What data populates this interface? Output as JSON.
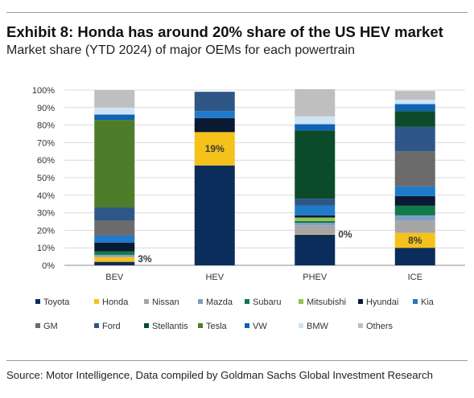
{
  "title": "Exhibit 8: Honda has around 20% share of the US HEV market",
  "subtitle": "Market share (YTD 2024) of major OEMs for each powertrain",
  "source": "Source: Motor Intelligence, Data compiled by Goldman Sachs Global Investment Research",
  "chart_data": {
    "type": "bar",
    "stacked": true,
    "categories": [
      "BEV",
      "HEV",
      "PHEV",
      "ICE"
    ],
    "ylim": [
      0,
      100
    ],
    "yticks": [
      "0%",
      "10%",
      "20%",
      "30%",
      "40%",
      "50%",
      "60%",
      "70%",
      "80%",
      "90%",
      "100%"
    ],
    "grid": true,
    "legend_position": "bottom",
    "series": [
      {
        "name": "Toyota",
        "color": "#0b2d5b",
        "values": [
          2,
          57,
          17.5,
          10
        ]
      },
      {
        "name": "Honda",
        "color": "#f5c21b",
        "values": [
          2.5,
          19,
          0.3,
          8.5
        ]
      },
      {
        "name": "Nissan",
        "color": "#a6a6a6",
        "values": [
          1,
          0,
          5,
          7
        ]
      },
      {
        "name": "Mazda",
        "color": "#7f9ec4",
        "values": [
          0.5,
          0,
          1.5,
          3
        ]
      },
      {
        "name": "Subaru",
        "color": "#0f7a4a",
        "values": [
          2,
          0,
          1,
          5.5
        ]
      },
      {
        "name": "Mitsubishi",
        "color": "#92c353",
        "values": [
          0,
          0,
          2,
          0
        ]
      },
      {
        "name": "Hyundai",
        "color": "#0a1a33",
        "values": [
          5,
          8,
          1.2,
          5.5
        ]
      },
      {
        "name": "Kia",
        "color": "#1f7ac9",
        "values": [
          4,
          4,
          5.5,
          5.5
        ]
      },
      {
        "name": "GM",
        "color": "#6b6b6b",
        "values": [
          8.5,
          0,
          0,
          20
        ]
      },
      {
        "name": "Ford",
        "color": "#2e5687",
        "values": [
          7.5,
          11,
          4,
          14
        ]
      },
      {
        "name": "Stellantis",
        "color": "#0c4b2a",
        "values": [
          0,
          0,
          39,
          9
        ]
      },
      {
        "name": "Tesla",
        "color": "#4e7d2a",
        "values": [
          50,
          0,
          0,
          0
        ]
      },
      {
        "name": "VW",
        "color": "#0d63b4",
        "values": [
          3,
          0,
          3.5,
          4
        ]
      },
      {
        "name": "BMW",
        "color": "#cfe3f6",
        "values": [
          4,
          0,
          4.5,
          2.5
        ]
      },
      {
        "name": "Others",
        "color": "#bfbfbf",
        "values": [
          10,
          0,
          15.5,
          5
        ]
      }
    ],
    "annotations": [
      {
        "category": "BEV",
        "series": "Honda",
        "text": "3%"
      },
      {
        "category": "HEV",
        "series": "Honda",
        "text": "19%"
      },
      {
        "category": "PHEV",
        "series": "Honda",
        "text": "0%"
      },
      {
        "category": "ICE",
        "series": "Honda",
        "text": "8%"
      }
    ]
  }
}
